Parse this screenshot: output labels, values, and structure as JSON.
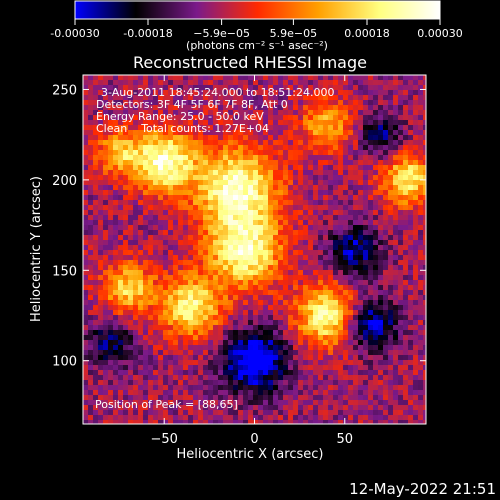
{
  "chart_data": {
    "type": "heatmap",
    "title": "Reconstructed RHESSI Image",
    "xlabel": "Heliocentric X (arcsec)",
    "ylabel": "Heliocentric Y (arcsec)",
    "xlim": [
      -95,
      95
    ],
    "ylim": [
      65,
      258
    ],
    "x_ticks": [
      -50,
      0,
      50
    ],
    "x_tick_labels": [
      "−50",
      "0",
      "50"
    ],
    "y_ticks": [
      100,
      150,
      200,
      250
    ],
    "y_tick_labels": [
      "100",
      "150",
      "200",
      "250"
    ],
    "colorbar": {
      "range": [
        -0.0003,
        0.0003
      ],
      "ticks": [
        -0.0003,
        -0.00018,
        -5.9e-05,
        5.9e-05,
        0.00018,
        0.0003
      ],
      "tick_labels": [
        "-0.00030",
        "-0.00018",
        "−5.9e−05",
        "5.9e−05",
        "0.00018",
        "0.00030"
      ],
      "unit_label": "(photons cm⁻² s⁻¹ asec⁻²)",
      "colors": [
        "#0000ff",
        "#000000",
        "#7a1a8a",
        "#ff2a00",
        "#ffa000",
        "#ffff80",
        "#ffffff"
      ]
    },
    "annotations": [
      "3-Aug-2011 18:45:24.000 to 18:51:24.000",
      "Detectors: 3F 4F 5F 6F 7F 8F, Att 0",
      "Energy Range: 25.0 - 50.0 keV",
      "Clean    Total counts: 1.27E+04"
    ],
    "peak_label": "Position of Peak = [88,65]",
    "bright_sources": [
      {
        "x": -50,
        "y": 210,
        "amp": 1.0,
        "sigma": 12
      },
      {
        "x": -10,
        "y": 195,
        "amp": 1.0,
        "sigma": 16
      },
      {
        "x": -5,
        "y": 160,
        "amp": 0.9,
        "sigma": 14
      },
      {
        "x": -35,
        "y": 130,
        "amp": 0.85,
        "sigma": 12
      },
      {
        "x": -70,
        "y": 140,
        "amp": 0.7,
        "sigma": 10
      },
      {
        "x": 40,
        "y": 125,
        "amp": 0.9,
        "sigma": 12
      },
      {
        "x": 85,
        "y": 200,
        "amp": 0.8,
        "sigma": 10
      },
      {
        "x": 40,
        "y": 230,
        "amp": 0.6,
        "sigma": 10
      },
      {
        "x": -75,
        "y": 215,
        "amp": 0.6,
        "sigma": 9
      }
    ],
    "negative_sources": [
      {
        "x": 0,
        "y": 100,
        "amp": -0.9,
        "sigma": 12
      },
      {
        "x": 65,
        "y": 120,
        "amp": -0.7,
        "sigma": 10
      },
      {
        "x": 55,
        "y": 160,
        "amp": -0.6,
        "sigma": 10
      },
      {
        "x": 70,
        "y": 225,
        "amp": -0.5,
        "sigma": 8
      },
      {
        "x": -80,
        "y": 110,
        "amp": -0.5,
        "sigma": 9
      }
    ]
  },
  "footer": {
    "date": "12-May-2022 21:51"
  }
}
